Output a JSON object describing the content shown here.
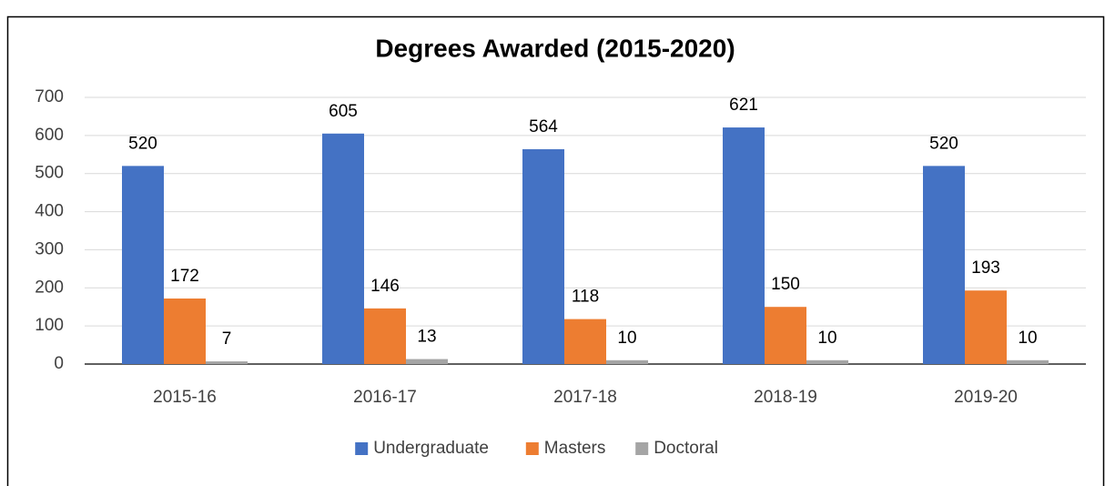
{
  "chart_data": {
    "type": "bar",
    "title": "Degrees Awarded (2015-2020)",
    "categories": [
      "2015-16",
      "2016-17",
      "2017-18",
      "2018-19",
      "2019-20"
    ],
    "series": [
      {
        "name": "Undergraduate",
        "color": "#4472c4",
        "values": [
          520,
          605,
          564,
          621,
          520
        ]
      },
      {
        "name": "Masters",
        "color": "#ed7d31",
        "values": [
          172,
          146,
          118,
          150,
          193
        ]
      },
      {
        "name": "Doctoral",
        "color": "#a5a5a5",
        "values": [
          7,
          13,
          10,
          10,
          10
        ]
      }
    ],
    "ylim": [
      0,
      700
    ],
    "yticks": [
      0,
      100,
      200,
      300,
      400,
      500,
      600,
      700
    ],
    "grid": true,
    "legend": "bottom"
  }
}
